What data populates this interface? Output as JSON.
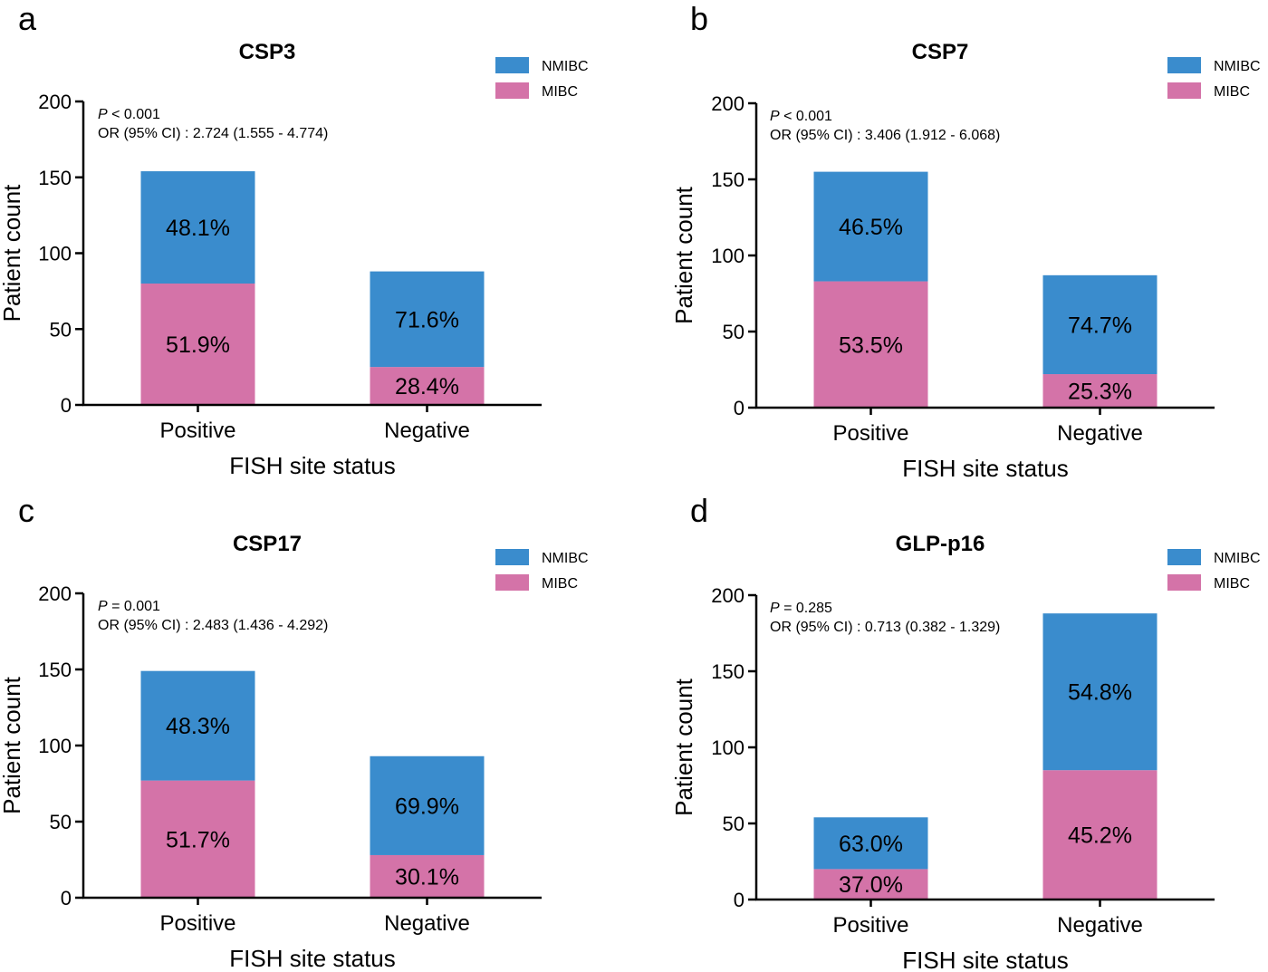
{
  "colors": {
    "NMIBC": "#3a8ccd",
    "MIBC": "#d473a8",
    "axis": "#000000"
  },
  "chart_data": [
    {
      "panel": "a",
      "type": "bar",
      "stacked": true,
      "title": "CSP3",
      "xlabel": "FISH site status",
      "ylabel": "Patient count",
      "ylim": [
        0,
        200
      ],
      "yticks": [
        0,
        50,
        100,
        150,
        200
      ],
      "categories": [
        "Positive",
        "Negative"
      ],
      "series": [
        {
          "name": "MIBC",
          "values": [
            80,
            25
          ],
          "labels": [
            "51.9%",
            "28.4%"
          ]
        },
        {
          "name": "NMIBC",
          "values": [
            74,
            63
          ],
          "labels": [
            "48.1%",
            "71.6%"
          ]
        }
      ],
      "legend": [
        "NMIBC",
        "MIBC"
      ],
      "legend_position": "top-right",
      "p_label": "P",
      "p_text": " < 0.001",
      "or_text": "OR (95% CI) : 2.724 (1.555 - 4.774)"
    },
    {
      "panel": "b",
      "type": "bar",
      "stacked": true,
      "title": "CSP7",
      "xlabel": "FISH site status",
      "ylabel": "Patient count",
      "ylim": [
        0,
        200
      ],
      "yticks": [
        0,
        50,
        100,
        150,
        200
      ],
      "categories": [
        "Positive",
        "Negative"
      ],
      "series": [
        {
          "name": "MIBC",
          "values": [
            83,
            22
          ],
          "labels": [
            "53.5%",
            "25.3%"
          ]
        },
        {
          "name": "NMIBC",
          "values": [
            72,
            65
          ],
          "labels": [
            "46.5%",
            "74.7%"
          ]
        }
      ],
      "legend": [
        "NMIBC",
        "MIBC"
      ],
      "legend_position": "top-right",
      "p_label": "P",
      "p_text": " < 0.001",
      "or_text": "OR (95% CI) : 3.406 (1.912 - 6.068)"
    },
    {
      "panel": "c",
      "type": "bar",
      "stacked": true,
      "title": "CSP17",
      "xlabel": "FISH site status",
      "ylabel": "Patient count",
      "ylim": [
        0,
        200
      ],
      "yticks": [
        0,
        50,
        100,
        150,
        200
      ],
      "categories": [
        "Positive",
        "Negative"
      ],
      "series": [
        {
          "name": "MIBC",
          "values": [
            77,
            28
          ],
          "labels": [
            "51.7%",
            "30.1%"
          ]
        },
        {
          "name": "NMIBC",
          "values": [
            72,
            65
          ],
          "labels": [
            "48.3%",
            "69.9%"
          ]
        }
      ],
      "legend": [
        "NMIBC",
        "MIBC"
      ],
      "legend_position": "top-right",
      "p_label": "P",
      "p_text": " = 0.001",
      "or_text": "OR (95% CI) : 2.483 (1.436 - 4.292)"
    },
    {
      "panel": "d",
      "type": "bar",
      "stacked": true,
      "title": "GLP-p16",
      "xlabel": "FISH site status",
      "ylabel": "Patient count",
      "ylim": [
        0,
        200
      ],
      "yticks": [
        0,
        50,
        100,
        150,
        200
      ],
      "categories": [
        "Positive",
        "Negative"
      ],
      "series": [
        {
          "name": "MIBC",
          "values": [
            20,
            85
          ],
          "labels": [
            "37.0%",
            "45.2%"
          ]
        },
        {
          "name": "NMIBC",
          "values": [
            34,
            103
          ],
          "labels": [
            "63.0%",
            "54.8%"
          ]
        }
      ],
      "legend": [
        "NMIBC",
        "MIBC"
      ],
      "legend_position": "top-right",
      "p_label": "P",
      "p_text": " = 0.285",
      "or_text": "OR (95% CI) : 0.713 (0.382 - 1.329)"
    }
  ]
}
